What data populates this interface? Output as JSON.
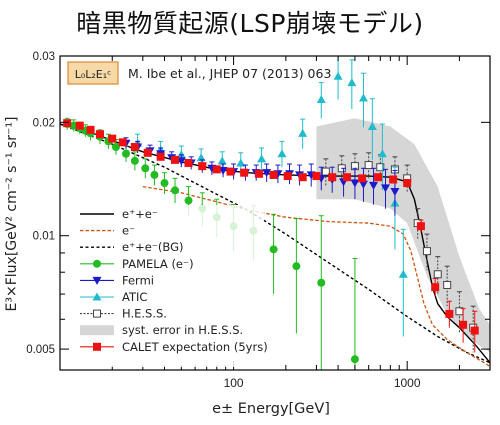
{
  "page": {
    "title": "暗黒物質起源(LSP崩壊モデル)"
  },
  "chart_data": {
    "type": "scatter",
    "title": "",
    "xlabel": "e± Energy[GeV]",
    "ylabel": "E³×Flux[GeV² cm⁻² s⁻¹ sr⁻¹]",
    "x_scale": "log",
    "y_scale": "log",
    "xlim": [
      10,
      3000
    ],
    "ylim": [
      0.0044,
      0.03
    ],
    "x_ticks": [
      100,
      1000
    ],
    "y_ticks": [
      0.005,
      0.01,
      0.02,
      0.03
    ],
    "x_tick_labels": [
      "100",
      "1000"
    ],
    "y_tick_labels": [
      "0.005",
      "0.01",
      "0.02",
      "0.03"
    ],
    "model_badge": "L₀L₂E₁ᶜ",
    "citation": "M. Ibe et al., JHEP 07 (2013) 063",
    "legend_position": "lower-left",
    "colors": {
      "pamela": "#22bb22",
      "fermi": "#1a1acc",
      "atic": "#22bbcc",
      "hess": "#444444",
      "hess_band": "#d6d6d6",
      "calet": "#ee1111",
      "dm_electron": "#cc5511",
      "badge_fill": "#f7d9a8",
      "badge_border": "#dd8833"
    },
    "series": [
      {
        "name": "e⁺+e⁻",
        "kind": "line",
        "style": "solid",
        "points": [
          [
            10,
            0.0198
          ],
          [
            15,
            0.0188
          ],
          [
            20,
            0.0179
          ],
          [
            30,
            0.0167
          ],
          [
            50,
            0.0157
          ],
          [
            80,
            0.015
          ],
          [
            120,
            0.0147
          ],
          [
            200,
            0.0145
          ],
          [
            350,
            0.0144
          ],
          [
            600,
            0.0144
          ],
          [
            800,
            0.0143
          ],
          [
            1000,
            0.0139
          ],
          [
            1100,
            0.0125
          ],
          [
            1200,
            0.0104
          ],
          [
            1300,
            0.0086
          ],
          [
            1400,
            0.0073
          ],
          [
            1500,
            0.0066
          ],
          [
            1700,
            0.0061
          ],
          [
            2000,
            0.0057
          ],
          [
            2500,
            0.0051
          ],
          [
            3000,
            0.0046
          ]
        ]
      },
      {
        "name": "e⁻",
        "kind": "line",
        "style": "dashed",
        "points": [
          [
            30,
            0.0135
          ],
          [
            50,
            0.013
          ],
          [
            80,
            0.0123
          ],
          [
            120,
            0.0117
          ],
          [
            200,
            0.0112
          ],
          [
            350,
            0.0109
          ],
          [
            600,
            0.0108
          ],
          [
            800,
            0.0106
          ],
          [
            950,
            0.0101
          ],
          [
            1050,
            0.0091
          ],
          [
            1150,
            0.0077
          ],
          [
            1250,
            0.0066
          ],
          [
            1400,
            0.0058
          ],
          [
            1700,
            0.0053
          ],
          [
            2200,
            0.0049
          ],
          [
            3000,
            0.0045
          ]
        ]
      },
      {
        "name": "e⁺+e⁻(BG)",
        "kind": "line",
        "style": "dotted",
        "points": [
          [
            10,
            0.0198
          ],
          [
            20,
            0.0175
          ],
          [
            40,
            0.0152
          ],
          [
            70,
            0.0133
          ],
          [
            120,
            0.0117
          ],
          [
            200,
            0.0101
          ],
          [
            350,
            0.0085
          ],
          [
            600,
            0.0072
          ],
          [
            1000,
            0.0061
          ],
          [
            1500,
            0.0054
          ],
          [
            2200,
            0.0049
          ],
          [
            3000,
            0.0046
          ]
        ]
      },
      {
        "name": "PAMELA (e⁻)",
        "kind": "points",
        "marker": "circle",
        "points": [
          [
            11,
            0.0198
          ],
          [
            12,
            0.0196
          ],
          [
            13,
            0.0193
          ],
          [
            14,
            0.019
          ],
          [
            15,
            0.0187
          ],
          [
            17,
            0.0183
          ],
          [
            19,
            0.0178
          ],
          [
            21,
            0.0172
          ],
          [
            24,
            0.0165
          ],
          [
            27,
            0.0158
          ],
          [
            31,
            0.0151
          ],
          [
            35,
            0.0145
          ],
          [
            40,
            0.0138
          ],
          [
            46,
            0.0132
          ],
          [
            55,
            0.0124
          ],
          [
            66,
            0.0118
          ],
          [
            80,
            0.0112
          ],
          [
            100,
            0.0106
          ],
          [
            130,
            0.0103
          ],
          [
            170,
            0.0092
          ],
          [
            230,
            0.0083
          ],
          [
            320,
            0.0075
          ],
          [
            500,
            0.0047
          ]
        ],
        "err": [
          0.0007,
          0.0007,
          0.0007,
          0.0007,
          0.0008,
          0.0008,
          0.0008,
          0.0008,
          0.0008,
          0.0009,
          0.0009,
          0.0009,
          0.0009,
          0.001,
          0.0011,
          0.0012,
          0.0013,
          0.0015,
          0.0017,
          0.0022,
          0.0028,
          0.0038,
          0.004
        ]
      },
      {
        "name": "Fermi",
        "kind": "points",
        "marker": "triangle-down",
        "points": [
          [
            24,
            0.0176
          ],
          [
            28,
            0.0172
          ],
          [
            33,
            0.0168
          ],
          [
            38,
            0.0165
          ],
          [
            44,
            0.0161
          ],
          [
            50,
            0.0158
          ],
          [
            57,
            0.0156
          ],
          [
            66,
            0.0153
          ],
          [
            75,
            0.0151
          ],
          [
            87,
            0.0149
          ],
          [
            100,
            0.0148
          ],
          [
            117,
            0.0147
          ],
          [
            135,
            0.0147
          ],
          [
            155,
            0.0147
          ],
          [
            180,
            0.0146
          ],
          [
            210,
            0.0146
          ],
          [
            240,
            0.0145
          ],
          [
            280,
            0.0145
          ],
          [
            320,
            0.0142
          ],
          [
            370,
            0.0141
          ],
          [
            430,
            0.0139
          ],
          [
            500,
            0.0138
          ],
          [
            560,
            0.0137
          ],
          [
            640,
            0.0136
          ],
          [
            750,
            0.0134
          ],
          [
            850,
            0.0131
          ]
        ],
        "err": [
          0.0006,
          0.0006,
          0.0006,
          0.0006,
          0.0006,
          0.0006,
          0.0006,
          0.0006,
          0.0006,
          0.0006,
          0.0007,
          0.0007,
          0.0007,
          0.0008,
          0.0008,
          0.0009,
          0.0009,
          0.001,
          0.001,
          0.0011,
          0.0012,
          0.0013,
          0.0014,
          0.0015,
          0.0016,
          0.0018
        ]
      },
      {
        "name": "ATIC",
        "kind": "points",
        "marker": "triangle-up",
        "points": [
          [
            28,
            0.0176
          ],
          [
            38,
            0.0169
          ],
          [
            50,
            0.0164
          ],
          [
            65,
            0.0161
          ],
          [
            86,
            0.0158
          ],
          [
            110,
            0.0156
          ],
          [
            145,
            0.016
          ],
          [
            190,
            0.0165
          ],
          [
            250,
            0.0187
          ],
          [
            320,
            0.023
          ],
          [
            400,
            0.0265
          ],
          [
            480,
            0.0255
          ],
          [
            560,
            0.0232
          ],
          [
            630,
            0.0195
          ],
          [
            720,
            0.0165
          ],
          [
            850,
            0.0122
          ],
          [
            950,
            0.0079
          ]
        ],
        "err": [
          0.001,
          0.0009,
          0.0009,
          0.0009,
          0.0009,
          0.001,
          0.0011,
          0.0013,
          0.0017,
          0.0025,
          0.0035,
          0.0038,
          0.0038,
          0.0036,
          0.0033,
          0.003,
          0.0025
        ]
      },
      {
        "name": "H.E.S.S.",
        "kind": "points",
        "marker": "square-open",
        "points": [
          [
            340,
            0.0148
          ],
          [
            420,
            0.0151
          ],
          [
            500,
            0.0153
          ],
          [
            600,
            0.0154
          ],
          [
            700,
            0.0152
          ],
          [
            850,
            0.015
          ],
          [
            1000,
            0.0142
          ],
          [
            1150,
            0.0108
          ],
          [
            1300,
            0.0091
          ],
          [
            1500,
            0.0079
          ],
          [
            1700,
            0.0074
          ],
          [
            2000,
            0.0063
          ],
          [
            2400,
            0.0057
          ]
        ],
        "err": [
          0.0012,
          0.0012,
          0.0012,
          0.0012,
          0.0012,
          0.0012,
          0.0012,
          0.001,
          0.001,
          0.0009,
          0.0009,
          0.0008,
          0.0008
        ]
      },
      {
        "name": "syst. error in H.E.S.S.",
        "kind": "band",
        "upper": [
          [
            300,
            0.0195
          ],
          [
            500,
            0.0205
          ],
          [
            800,
            0.0195
          ],
          [
            1100,
            0.0175
          ],
          [
            1500,
            0.0135
          ],
          [
            2000,
            0.0088
          ],
          [
            2600,
            0.0064
          ],
          [
            3000,
            0.0058
          ]
        ],
        "lower": [
          [
            300,
            0.0125
          ],
          [
            500,
            0.0125
          ],
          [
            800,
            0.0118
          ],
          [
            1000,
            0.0108
          ],
          [
            1300,
            0.0078
          ],
          [
            1700,
            0.0062
          ],
          [
            2300,
            0.0053
          ],
          [
            3000,
            0.0049
          ]
        ]
      },
      {
        "name": "CALET expectation (5yrs)",
        "kind": "points",
        "marker": "square",
        "points": [
          [
            11,
            0.0199
          ],
          [
            13,
            0.0196
          ],
          [
            15,
            0.0191
          ],
          [
            17,
            0.0186
          ],
          [
            20,
            0.0181
          ],
          [
            23,
            0.0177
          ],
          [
            27,
            0.0172
          ],
          [
            32,
            0.0166
          ],
          [
            38,
            0.0162
          ],
          [
            46,
            0.0159
          ],
          [
            55,
            0.0156
          ],
          [
            66,
            0.0153
          ],
          [
            80,
            0.015
          ],
          [
            96,
            0.0148
          ],
          [
            115,
            0.0147
          ],
          [
            140,
            0.0146
          ],
          [
            170,
            0.0145
          ],
          [
            205,
            0.0144
          ],
          [
            250,
            0.0143
          ],
          [
            300,
            0.0144
          ],
          [
            370,
            0.0143
          ],
          [
            450,
            0.0143
          ],
          [
            550,
            0.0142
          ],
          [
            680,
            0.0143
          ],
          [
            830,
            0.0141
          ],
          [
            1000,
            0.0138
          ],
          [
            1200,
            0.0106
          ],
          [
            1450,
            0.0073
          ],
          [
            1750,
            0.0062
          ],
          [
            2100,
            0.0058
          ],
          [
            2450,
            0.0056
          ]
        ],
        "err": [
          0.0001,
          0.0001,
          0.0001,
          0.0001,
          0.0001,
          0.0001,
          0.0001,
          0.0001,
          0.0001,
          0.0001,
          0.0001,
          0.0001,
          0.0001,
          0.0001,
          0.0001,
          0.0001,
          0.0001,
          0.0001,
          0.0001,
          0.0001,
          0.0001,
          0.0002,
          0.0002,
          0.0002,
          0.0003,
          0.0003,
          0.0004,
          0.0004,
          0.0005,
          0.0006,
          0.0007
        ]
      }
    ]
  }
}
